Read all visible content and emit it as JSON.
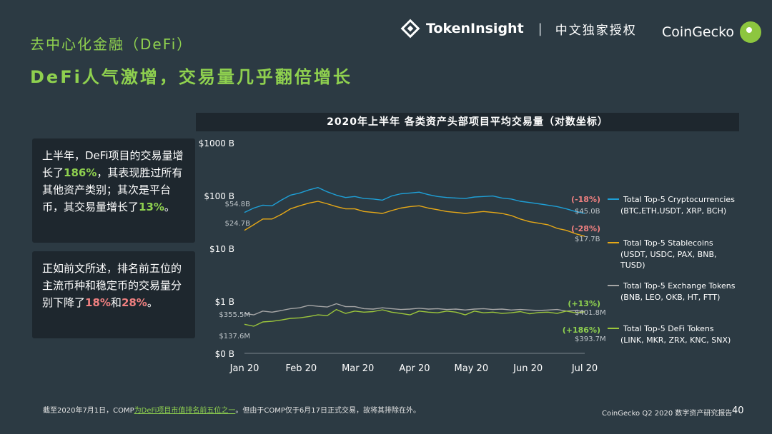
{
  "header": {
    "section": "去中心化金融（DeFi）",
    "headline": "DeFi人气激增，交易量几乎翻倍增长",
    "tokeninsight": "TokenInsight",
    "separator": "|",
    "auth": "中文独家授权",
    "coingecko": "CoinGecko"
  },
  "box1": {
    "p1": "上半年，DeFi项目的交易量增长了",
    "v1": "186%",
    "p2": "，其表现胜过所有其他资产类别；其次是平台币，其交易量增长了",
    "v2": "13%",
    "p3": "。"
  },
  "box2": {
    "p1": "正如前文所述，排名前五位的主流币种和稳定币的交易量分别下降了",
    "v1": "18%",
    "p2": "和",
    "v2": "28%",
    "p3": "。"
  },
  "footer": {
    "note1": "截至2020年7月1日，COMP",
    "note_link": "为DeFi项目市值排名前五位之一",
    "note2": "。但由于COMP仅于6月17日正式交易，故将其排除在外。",
    "report": "CoinGecko Q2 2020 数字资产研究报告",
    "page": "40"
  },
  "colors": {
    "crypto": "#1e9fd6",
    "stable": "#e6a817",
    "exchange": "#a6a6a6",
    "defi": "#9cc63b",
    "accent_green": "#8fd14f",
    "accent_red": "#f08080"
  },
  "chart_data": {
    "type": "line",
    "title": "2020年上半年 各类资产头部项目平均交易量（对数坐标）",
    "y_scale": "log (broken axis)",
    "y_ticks": [
      "$1000 B",
      "$100 B",
      "$10 B",
      "$1 B",
      "$0 B"
    ],
    "x_ticks": [
      "Jan 20",
      "Feb 20",
      "Mar 20",
      "Apr 20",
      "May 20",
      "Jun 20",
      "Jul 20"
    ],
    "grid": false,
    "legend_position": "right",
    "series": [
      {
        "name": "Total Top-5  Cryptocurrencies",
        "legend_sub": "(BTC,ETH,USDT, XRP, BCH)",
        "start_label": "$54.8B",
        "end_label": "$45.0B",
        "change_label": "(-18%)",
        "values_B": [
          48,
          58,
          66,
          64,
          82,
          102,
          112,
          128,
          142,
          118,
          102,
          92,
          96,
          88,
          86,
          82,
          98,
          108,
          112,
          116,
          104,
          96,
          92,
          90,
          88,
          94,
          96,
          98,
          90,
          86,
          78,
          74,
          70,
          66,
          62,
          56,
          50,
          46
        ]
      },
      {
        "name": "Total Top-5 Stablecoins",
        "legend_sub": "(USDT, USDC, PAX, BNB, TUSD)",
        "start_label": "$24.7B",
        "end_label": "$17.7B",
        "change_label": "(-28%)",
        "values_B": [
          22,
          28,
          36,
          36,
          44,
          56,
          64,
          72,
          78,
          70,
          62,
          56,
          56,
          50,
          48,
          46,
          52,
          58,
          62,
          64,
          58,
          54,
          50,
          48,
          46,
          48,
          50,
          48,
          46,
          42,
          36,
          32,
          30,
          28,
          24,
          22,
          19,
          17
        ]
      },
      {
        "name": "Total Top-5 Exchange Tokens",
        "legend_sub": "(BNB, LEO, OKB, HT, FTT)",
        "start_label": "$355.5M",
        "end_label": "$401.8M",
        "change_label": "(+13%)",
        "values_M": [
          340,
          300,
          420,
          380,
          440,
          520,
          560,
          700,
          640,
          600,
          800,
          620,
          620,
          520,
          500,
          560,
          520,
          480,
          500,
          540,
          500,
          520,
          480,
          500,
          460,
          500,
          520,
          480,
          500,
          460,
          480,
          460,
          440,
          460,
          480,
          420,
          440,
          400
        ]
      },
      {
        "name": "Total Top-5 DeFi Tokens",
        "legend_sub": "(LINK, MKR, ZRX, KNC, SNX)",
        "start_label": "$137.6M",
        "end_label": "$393.7M",
        "change_label": "(+186%)",
        "values_M": [
          130,
          110,
          160,
          170,
          190,
          220,
          230,
          260,
          300,
          280,
          480,
          340,
          420,
          380,
          400,
          470,
          380,
          340,
          300,
          420,
          380,
          360,
          420,
          380,
          300,
          420,
          360,
          380,
          340,
          360,
          400,
          330,
          370,
          380,
          340,
          420,
          360,
          390
        ]
      }
    ]
  }
}
